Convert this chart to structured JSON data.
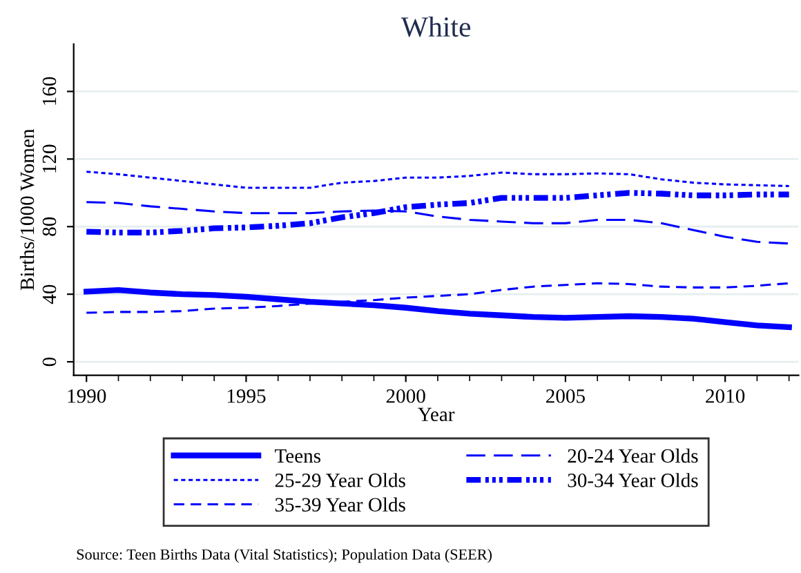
{
  "chart_data": {
    "type": "line",
    "title": "White",
    "xlabel": "Year",
    "ylabel": "Births/1000 Women",
    "x": [
      1990,
      1991,
      1992,
      1993,
      1994,
      1995,
      1996,
      1997,
      1998,
      1999,
      2000,
      2001,
      2002,
      2003,
      2004,
      2005,
      2006,
      2007,
      2008,
      2009,
      2010,
      2011,
      2012
    ],
    "series": [
      {
        "name": "Teens",
        "color": "#0000ff",
        "line_style": "solid",
        "values": [
          41.5,
          42.5,
          41,
          40,
          39.5,
          38.5,
          37,
          35.5,
          34.5,
          33.5,
          32,
          30,
          28.5,
          27.5,
          26.5,
          26,
          26.5,
          27,
          26.5,
          25.5,
          23.5,
          21.5,
          20.5
        ]
      },
      {
        "name": "20-24 Year Olds",
        "color": "#0000ff",
        "line_style": "dashed",
        "values": [
          94.5,
          94,
          92,
          90.5,
          89,
          88,
          88,
          88,
          89,
          89.5,
          89,
          86,
          84,
          83,
          82,
          82,
          84,
          84,
          82,
          78,
          74,
          71,
          70
        ]
      },
      {
        "name": "25-29 Year Olds",
        "color": "#0000ff",
        "line_style": "dotted",
        "values": [
          112.5,
          111,
          109,
          107,
          105,
          103,
          103,
          103,
          106,
          107,
          109,
          109,
          110,
          112,
          111,
          111,
          111.5,
          111,
          108,
          106,
          105,
          104.5,
          104
        ]
      },
      {
        "name": "30-34 Year Olds",
        "color": "#0000ff",
        "line_style": "dashed",
        "values": [
          77,
          76.5,
          76.5,
          77.5,
          79,
          79.5,
          80.5,
          82,
          85.5,
          88,
          91.5,
          93,
          94,
          97,
          97,
          97,
          98.5,
          100,
          99.5,
          98.5,
          98.5,
          99,
          99
        ]
      },
      {
        "name": "35-39 Year Olds",
        "color": "#0000ff",
        "line_style": "dashed",
        "values": [
          29,
          29.5,
          29.5,
          30,
          31.5,
          32,
          33,
          34.5,
          35.5,
          36.5,
          38,
          39,
          40,
          42.5,
          44.5,
          45.5,
          46.5,
          46,
          44.5,
          44,
          44,
          45,
          46.5
        ]
      }
    ],
    "xlim": [
      1989.6,
      2012.3
    ],
    "ylim": [
      -8,
      188
    ],
    "xticks": [
      1990,
      1995,
      2000,
      2005,
      2010
    ],
    "yticks": [
      0,
      40,
      80,
      120,
      160
    ],
    "grid": "y",
    "legend": "bottom",
    "marker": "none",
    "annotations": [
      "Source: Teen Births Data (Vital Statistics); Population Data (SEER)"
    ]
  }
}
